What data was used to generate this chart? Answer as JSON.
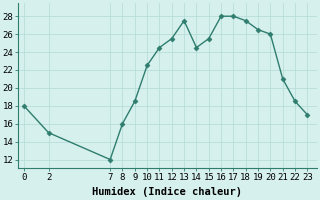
{
  "x": [
    0,
    2,
    7,
    8,
    9,
    10,
    11,
    12,
    13,
    14,
    15,
    16,
    17,
    18,
    19,
    20,
    21,
    22,
    23
  ],
  "y": [
    18,
    15,
    12,
    16,
    18.5,
    22.5,
    24.5,
    25.5,
    27.5,
    24.5,
    25.5,
    28,
    28,
    27.5,
    26.5,
    26,
    21,
    18.5,
    17
  ],
  "line_color": "#2e7d6e",
  "marker": "D",
  "marker_size": 2.5,
  "bg_color": "#d6f0ee",
  "grid_color": "#b8ddd9",
  "xlabel": "Humidex (Indice chaleur)",
  "ylim": [
    11,
    29.5
  ],
  "yticks": [
    12,
    14,
    16,
    18,
    20,
    22,
    24,
    26,
    28
  ],
  "xticks": [
    0,
    2,
    7,
    8,
    9,
    10,
    11,
    12,
    13,
    14,
    15,
    16,
    17,
    18,
    19,
    20,
    21,
    22,
    23
  ],
  "xlabel_fontsize": 7.5,
  "tick_fontsize": 6.5,
  "line_width": 1.0,
  "xlim": [
    -0.5,
    23.8
  ]
}
